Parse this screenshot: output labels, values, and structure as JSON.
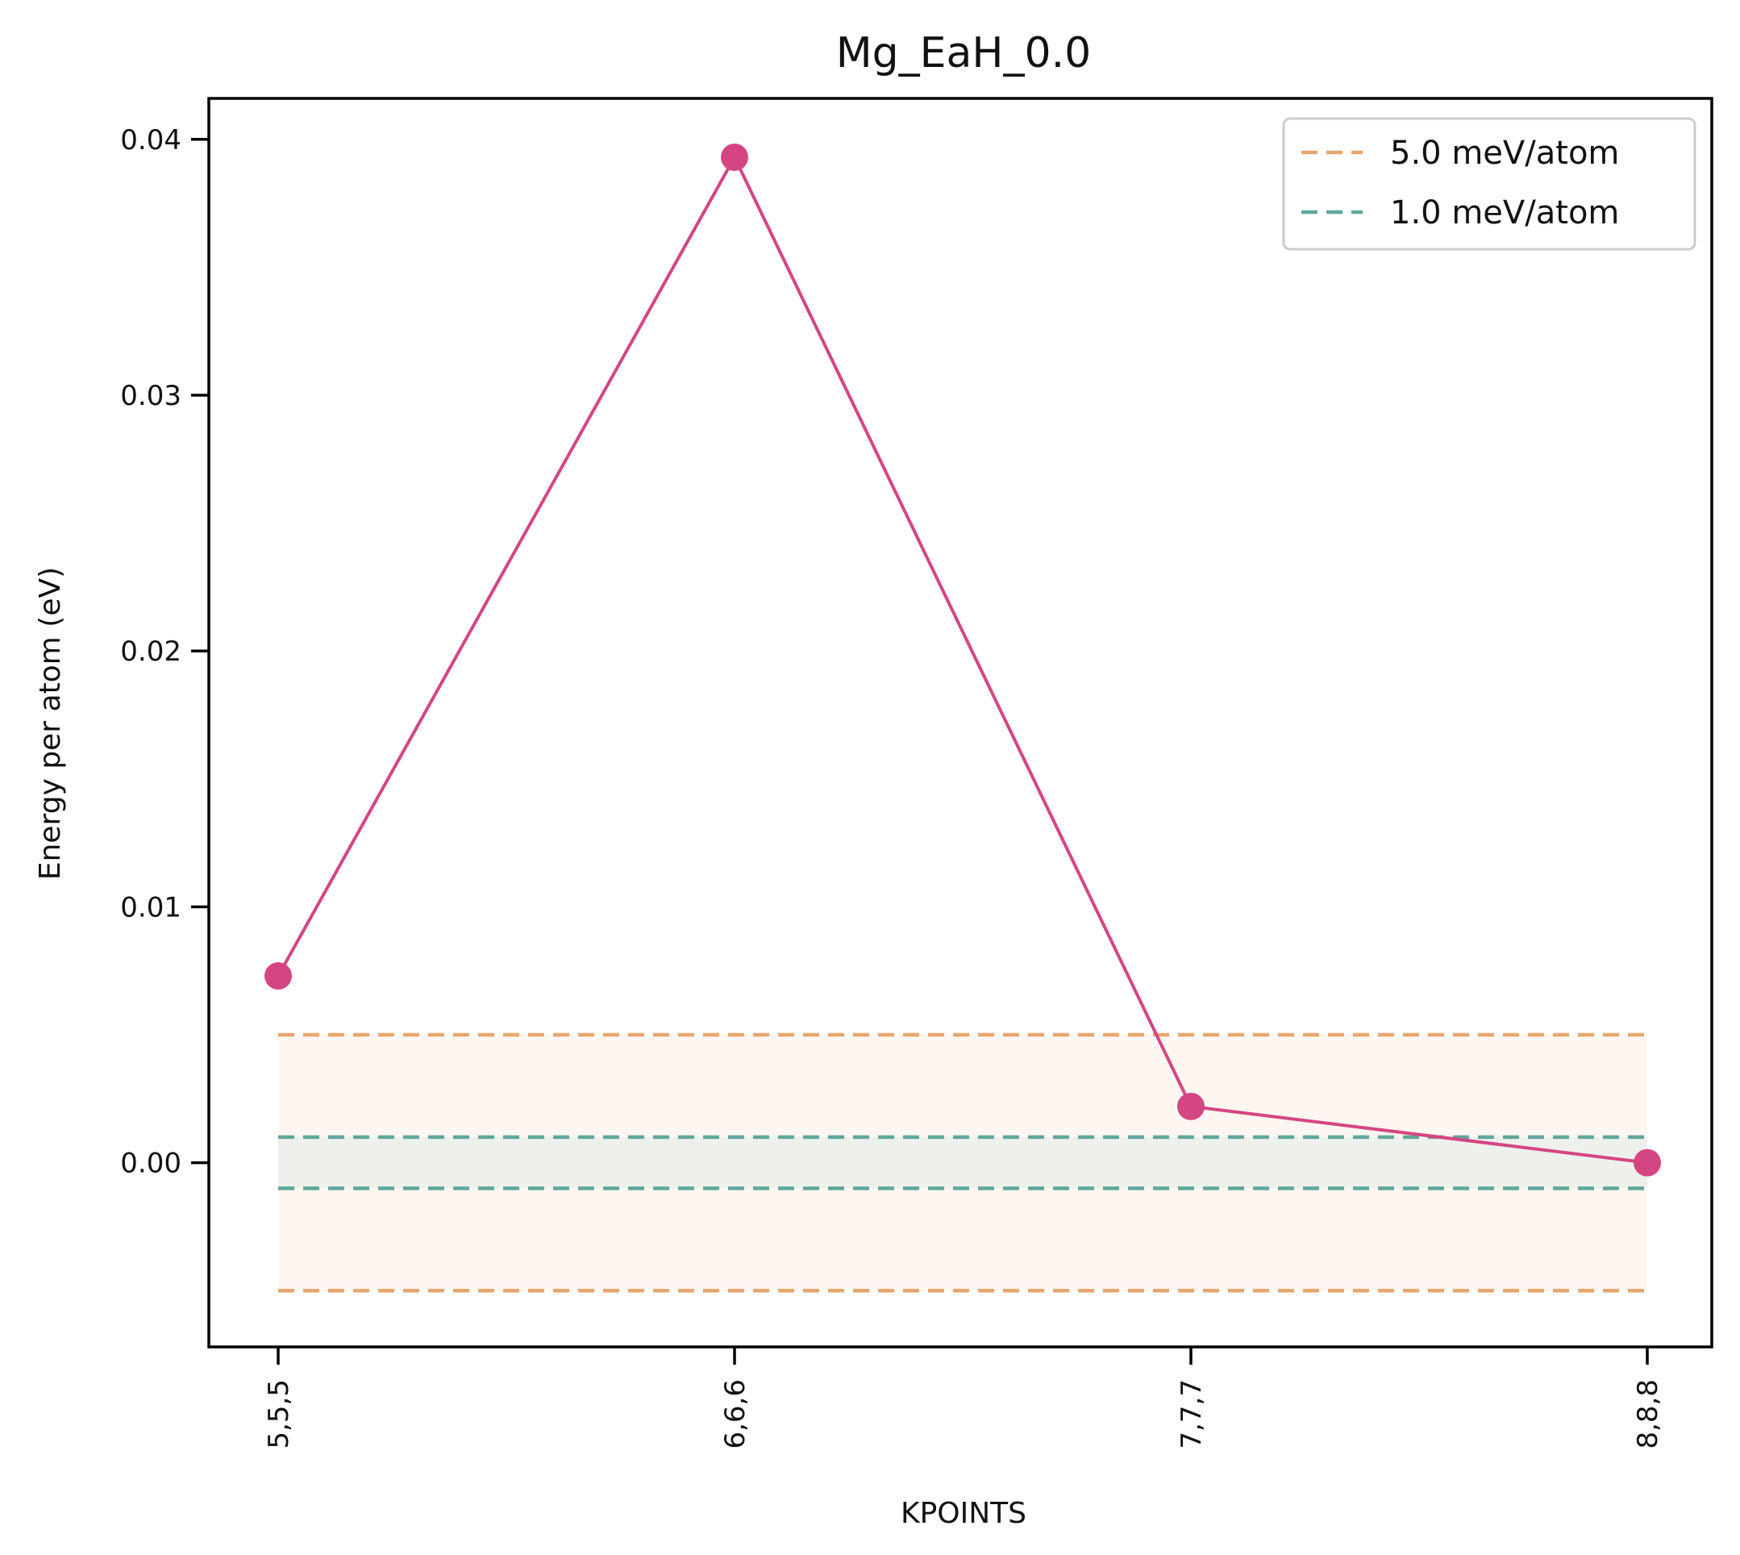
{
  "chart_data": {
    "type": "line",
    "title": "Mg_EaH_0.0",
    "xlabel": "KPOINTS",
    "ylabel": "Energy per atom (eV)",
    "categories": [
      "5,5,5",
      "6,6,6",
      "7,7,7",
      "8,8,8"
    ],
    "series": [
      {
        "values": [
          0.0073,
          0.0393,
          0.0022,
          0.0
        ],
        "color": "#d44683"
      }
    ],
    "thresholds": [
      {
        "name": "5.0 meV/atom",
        "value": 0.005,
        "color": "#e8a66c",
        "band_color": "#fdf6f1"
      },
      {
        "name": "1.0 meV/atom",
        "value": 0.001,
        "color": "#5fa89a",
        "band_color": "#eef0ec"
      }
    ],
    "yticks": [
      0.0,
      0.01,
      0.02,
      0.03,
      0.04
    ],
    "ytick_labels": [
      "0.00",
      "0.01",
      "0.02",
      "0.03",
      "0.04"
    ],
    "ylim": [
      -0.0072,
      0.0416
    ],
    "grid": false,
    "legend_position": "top-right"
  }
}
